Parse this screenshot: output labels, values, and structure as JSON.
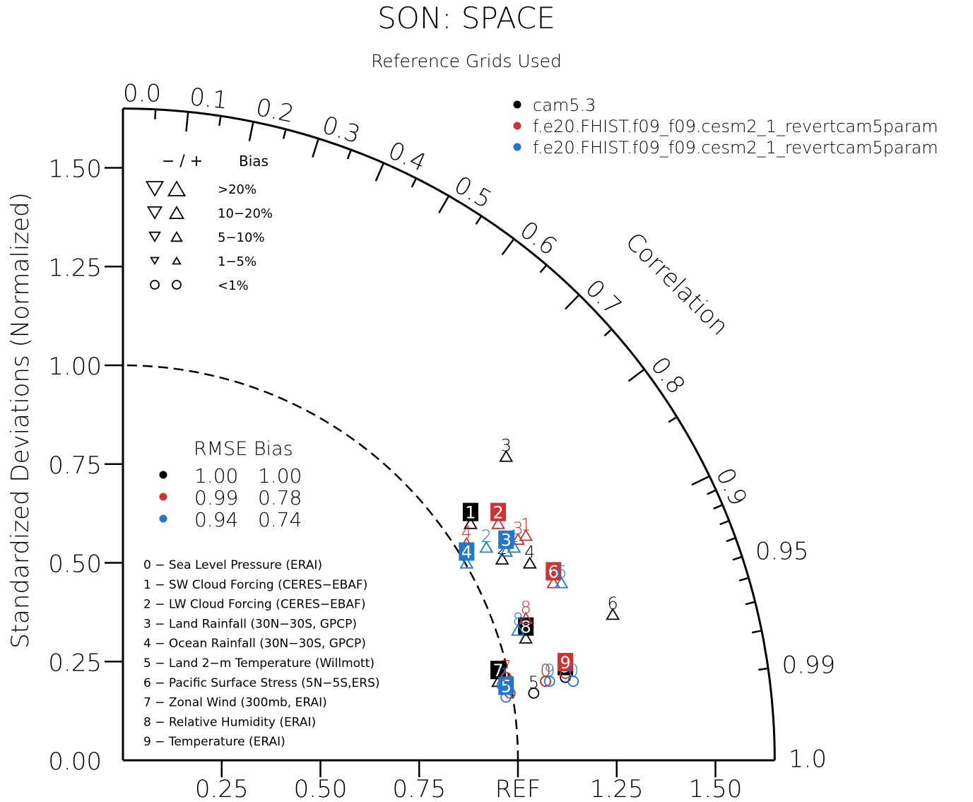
{
  "chart_data": {
    "type": "scatter",
    "title": "SON: SPACE",
    "subtitle": "Reference Grids Used",
    "ylabel": "Standardized Deviations (Normalized)",
    "arc_label": "Correlation",
    "xlim": [
      0,
      1.65
    ],
    "ylim": [
      0,
      1.65
    ],
    "std_ticks": [
      "0.00",
      "0.25",
      "0.50",
      "0.75",
      "1.00",
      "1.25",
      "1.50"
    ],
    "x_ticks": [
      "0.25",
      "0.50",
      "0.75",
      "REF",
      "1.25",
      "1.50"
    ],
    "ref_value": 1.0,
    "corr_ticks": [
      "0.0",
      "0.1",
      "0.2",
      "0.3",
      "0.4",
      "0.5",
      "0.6",
      "0.7",
      "0.8",
      "0.9",
      "0.95",
      "0.99",
      "1.0"
    ],
    "legend_models": [
      {
        "name": "cam5.3",
        "color": "#000000"
      },
      {
        "name": "f.e20.FHIST.f09_f09.cesm2_1_revertcam5param",
        "color": "#cc3333"
      },
      {
        "name": "f.e20.FHIST.f09_f09.cesm2_1_revertcam5param",
        "color": "#2277cc"
      }
    ],
    "bias_legend": {
      "header_sign": "− / +",
      "header_label": "Bias",
      "rows": [
        {
          "label": ">20%",
          "shape": "triangle",
          "size": 11
        },
        {
          "label": "10−20%",
          "shape": "triangle",
          "size": 9
        },
        {
          "label": "5−10%",
          "shape": "triangle",
          "size": 7
        },
        {
          "label": "1−5%",
          "shape": "triangle",
          "size": 5
        },
        {
          "label": "<1%",
          "shape": "circle",
          "size": 6
        }
      ]
    },
    "rmse_legend": {
      "header": "RMSE Bias",
      "rows": [
        {
          "color": "#000000",
          "rmse": "1.00",
          "bias": "1.00"
        },
        {
          "color": "#cc3333",
          "rmse": "0.99",
          "bias": "0.78"
        },
        {
          "color": "#2277cc",
          "rmse": "0.94",
          "bias": "0.74"
        }
      ]
    },
    "variables": [
      "0 − Sea Level Pressure (ERAI)",
      "1 − SW Cloud Forcing (CERES−EBAF)",
      "2 − LW Cloud Forcing (CERES−EBAF)",
      "3 − Land Rainfall (30N−30S, GPCP)",
      "4 − Ocean Rainfall (30N−30S, GPCP)",
      "5 − Land 2−m Temperature (Willmott)",
      "6 − Pacific Surface Stress (5N−5S,ERS)",
      "7 − Zonal Wind (300mb, ERAI)",
      "8 − Relative Humidity (ERAI)",
      "9 − Temperature (ERAI)"
    ],
    "series": [
      {
        "name": "cam5.3",
        "color": "#000000",
        "points": [
          {
            "label": "0",
            "x": 1.07,
            "y": 0.2,
            "sym": "circle",
            "boxed": false
          },
          {
            "label": "1",
            "x": 0.88,
            "y": 0.6,
            "sym": "up",
            "boxed": true
          },
          {
            "label": "2",
            "x": 0.96,
            "y": 0.51,
            "sym": "up",
            "boxed": false
          },
          {
            "label": "3",
            "x": 0.97,
            "y": 0.77,
            "sym": "up",
            "boxed": false
          },
          {
            "label": "4",
            "x": 1.03,
            "y": 0.5,
            "sym": "up",
            "boxed": false
          },
          {
            "label": "5",
            "x": 1.04,
            "y": 0.17,
            "sym": "circle",
            "boxed": false
          },
          {
            "label": "6",
            "x": 1.24,
            "y": 0.37,
            "sym": "up",
            "boxed": false
          },
          {
            "label": "7",
            "x": 0.95,
            "y": 0.2,
            "sym": "up",
            "boxed": true
          },
          {
            "label": "8",
            "x": 1.02,
            "y": 0.31,
            "sym": "up",
            "boxed": true
          },
          {
            "label": "9",
            "x": 1.12,
            "y": 0.21,
            "sym": "circle",
            "boxed": true
          }
        ]
      },
      {
        "name": "f.e20.FHIST.f09_f09.cesm2_1_revertcam5param",
        "color": "#cc3333",
        "points": [
          {
            "label": "0",
            "x": 1.07,
            "y": 0.2,
            "sym": "circle",
            "boxed": false
          },
          {
            "label": "1",
            "x": 1.02,
            "y": 0.57,
            "sym": "up",
            "boxed": false
          },
          {
            "label": "2",
            "x": 0.95,
            "y": 0.6,
            "sym": "up",
            "boxed": true
          },
          {
            "label": "3",
            "x": 1.0,
            "y": 0.56,
            "sym": "up",
            "boxed": false
          },
          {
            "label": "4",
            "x": 0.87,
            "y": 0.55,
            "sym": "up",
            "boxed": false
          },
          {
            "label": "5",
            "x": 0.98,
            "y": 0.17,
            "sym": "circle",
            "boxed": false
          },
          {
            "label": "6",
            "x": 1.09,
            "y": 0.45,
            "sym": "up",
            "boxed": true
          },
          {
            "label": "7",
            "x": 0.97,
            "y": 0.21,
            "sym": "circle",
            "boxed": false
          },
          {
            "label": "8",
            "x": 1.02,
            "y": 0.36,
            "sym": "up",
            "boxed": false
          },
          {
            "label": "9",
            "x": 1.12,
            "y": 0.22,
            "sym": "circle",
            "boxed": true
          }
        ]
      },
      {
        "name": "f.e20.FHIST.f09_f09.cesm2_1_revertcam5param",
        "color": "#2277cc",
        "points": [
          {
            "label": "0",
            "x": 1.14,
            "y": 0.2,
            "sym": "circle",
            "boxed": false
          },
          {
            "label": "1",
            "x": 0.99,
            "y": 0.54,
            "sym": "up",
            "boxed": false
          },
          {
            "label": "2",
            "x": 0.92,
            "y": 0.54,
            "sym": "up",
            "boxed": false
          },
          {
            "label": "3",
            "x": 0.97,
            "y": 0.53,
            "sym": "up",
            "boxed": true
          },
          {
            "label": "4",
            "x": 0.87,
            "y": 0.5,
            "sym": "up",
            "boxed": true
          },
          {
            "label": "5",
            "x": 0.97,
            "y": 0.16,
            "sym": "circle",
            "boxed": true
          },
          {
            "label": "6",
            "x": 1.11,
            "y": 0.45,
            "sym": "up",
            "boxed": false
          },
          {
            "label": "7",
            "x": 0.96,
            "y": 0.19,
            "sym": "circle",
            "boxed": false
          },
          {
            "label": "8",
            "x": 1.0,
            "y": 0.33,
            "sym": "up",
            "boxed": false
          },
          {
            "label": "9",
            "x": 1.08,
            "y": 0.2,
            "sym": "circle",
            "boxed": false
          }
        ]
      }
    ]
  }
}
